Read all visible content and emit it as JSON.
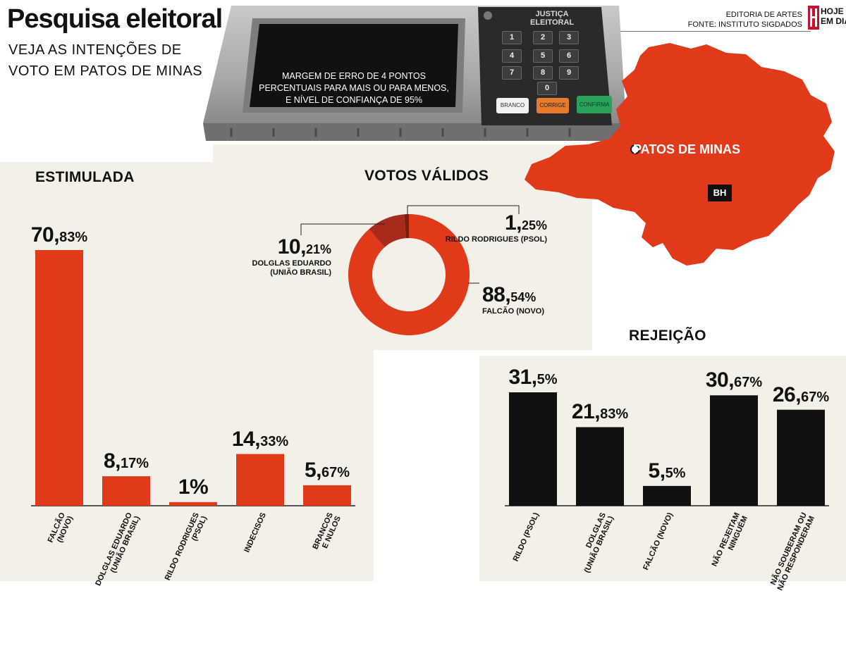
{
  "header": {
    "title": "Pesquisa eleitoral",
    "subtitle_line1": "VEJA AS INTENÇÕES DE",
    "subtitle_line2": "VOTO EM PATOS DE MINAS",
    "credit_line1": "EDITORIA DE ARTES",
    "credit_line2": "FONTE: INSTITUTO SIGDADOS",
    "logo_line1": "HOJE",
    "logo_line2": "EM DIA"
  },
  "urn": {
    "brand_line1": "JUSTIÇA",
    "brand_line2": "ELEITORAL",
    "keys": [
      "1",
      "2",
      "3",
      "4",
      "5",
      "6",
      "7",
      "8",
      "9",
      "0"
    ],
    "button_branco": "BRANCO",
    "button_corrige": "CORRIGE",
    "button_confirma": "CONFIRMA",
    "screen_line1": "MARGEM DE ERRO DE 4 PONTOS",
    "screen_line2": "PERCENTUAIS PARA MAIS OU PARA MENOS,",
    "screen_line3": "E NÍVEL DE CONFIANÇA DE 95%"
  },
  "map": {
    "city": "PATOS DE MINAS",
    "capital": "BH"
  },
  "colors": {
    "accent": "#e03a1a",
    "accent_dark": "#a82a1a",
    "ink": "#111111",
    "panel": "#f3f0e8"
  },
  "chart_data": [
    {
      "type": "bar",
      "title": "ESTIMULADA",
      "unit": "%",
      "categories": [
        "FALCÃO (NOVO)",
        "DOLGLAS EDUARDO (UNIÃO BRASIL)",
        "RILDO RODRIGUES (PSOL)",
        "INDECISOS",
        "BRANCOS E NULOS"
      ],
      "category_lines": [
        [
          "FALCÃO",
          "(NOVO)"
        ],
        [
          "DOLGLAS EDUARDO",
          "(UNIÃO BRASIL)"
        ],
        [
          "RILDO RODRIGUES",
          "(PSOL)"
        ],
        [
          "INDECISOS"
        ],
        [
          "BRANCOS",
          "E NULOS"
        ]
      ],
      "values": [
        70.83,
        8.17,
        1,
        14.33,
        5.67
      ],
      "labels": [
        [
          "70,",
          "83%"
        ],
        [
          "8,",
          "17%"
        ],
        [
          "1%",
          ""
        ],
        [
          "14,",
          "33%"
        ],
        [
          "5,",
          "67%"
        ]
      ],
      "color": "#e03a1a"
    },
    {
      "type": "pie",
      "title": "VOTOS VÁLIDOS",
      "unit": "%",
      "slices": [
        {
          "name": "FALCÃO (NOVO)",
          "value": 88.54,
          "label": [
            "88,",
            "54%"
          ],
          "name_lines": [
            "FALCÃO (NOVO)"
          ],
          "color": "#e03a1a"
        },
        {
          "name": "DOLGLAS EDUARDO (UNIÃO BRASIL)",
          "value": 10.21,
          "label": [
            "10,",
            "21%"
          ],
          "name_lines": [
            "DOLGLAS EDUARDO",
            "(UNIÃO BRASIL)"
          ],
          "color": "#a82a1a"
        },
        {
          "name": "RILDO RODRIGUES (PSOL)",
          "value": 1.25,
          "label": [
            "1,",
            "25%"
          ],
          "name_lines": [
            "RILDO RODRIGUES (PSOL)"
          ],
          "color": "#7a1e12"
        }
      ]
    },
    {
      "type": "bar",
      "title": "REJEIÇÃO",
      "unit": "%",
      "categories": [
        "RILDO (PSOL)",
        "DOLGLAS (UNIÃO BRASIL)",
        "FALCÃO (NOVO)",
        "NÃO REJEITAM NINGUÉM",
        "NÃO SOUBERAM OU NÃO RESPONDERAM"
      ],
      "category_lines": [
        [
          "RILDO (PSOL)"
        ],
        [
          "DOLGLAS",
          "(UNIÃO BRASIL)"
        ],
        [
          "FALCÃO (NOVO)"
        ],
        [
          "NÃO REJEITAM",
          "NINGUÉM"
        ],
        [
          "NÃO SOUBERAM OU",
          "NÃO RESPONDERAM"
        ]
      ],
      "values": [
        31.5,
        21.83,
        5.5,
        30.67,
        26.67
      ],
      "labels": [
        [
          "31,",
          "5%"
        ],
        [
          "21,",
          "83%"
        ],
        [
          "5,",
          "5%"
        ],
        [
          "30,",
          "67%"
        ],
        [
          "26,",
          "67%"
        ]
      ],
      "color": "#111111"
    }
  ]
}
